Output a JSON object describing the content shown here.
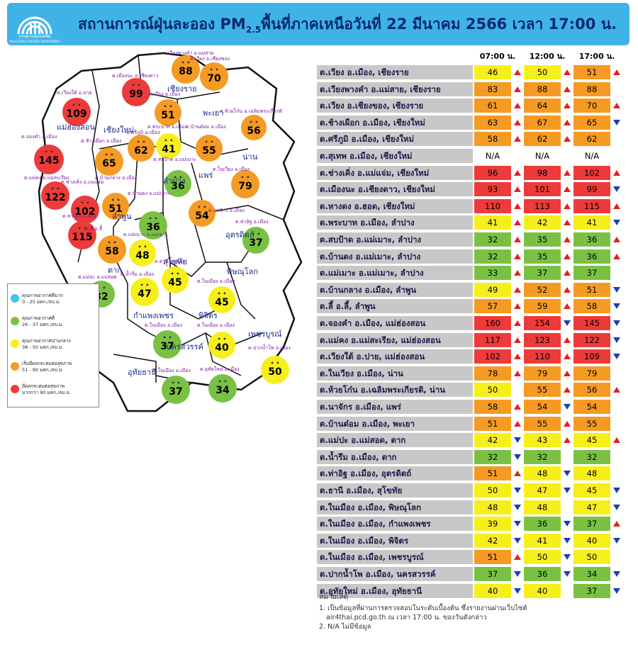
{
  "header": {
    "title_main": "สถานการณ์ฝุ่นละออง PM",
    "title_sub": "2.5",
    "title_rest": "พื้นที่ภาคเหนือวันที่ 22 มีนาคม 2566 เวลา 17:00 น.",
    "logo_text": "กรมควบคุมมลพิษ",
    "logo_subtext": "POLLUTION CONTROL DEPARTMENT",
    "bg_color": "#3fb3e8"
  },
  "legend": {
    "items": [
      {
        "l1": "คุณภาพอากาศดีมาก",
        "l2": "0 - 25 มคก./ลบ.ม.",
        "color": "#3ec6f0"
      },
      {
        "l1": "คุณภาพอากาศดี",
        "l2": "26 - 37 มคก./ลบ.ม.",
        "color": "#7ac143"
      },
      {
        "l1": "คุณภาพอากาศปานกลาง",
        "l2": "38 - 50 มคก./ลบ.ม.",
        "color": "#f7ef1c"
      },
      {
        "l1": "เริ่มมีผลกระทบต่อสุขภาพ",
        "l2": "51 - 90 มคก./ลบ.ม.",
        "color": "#f59a23"
      },
      {
        "l1": "มีผลกระทบต่อสุขภาพ",
        "l2": "มากกว่า 90 มคก./ลบ.ม.",
        "color": "#ed3a3a"
      }
    ]
  },
  "colors": {
    "red": "#ed3a3a",
    "orange": "#f59a23",
    "yellow": "#f7ef1c",
    "green": "#7ac143",
    "grey": "#c8c8c8"
  },
  "times": [
    "07:00 น.",
    "12:00 น.",
    "17:00 น."
  ],
  "stations": [
    {
      "name": "ต.เวียง อ.เมือง, เชียงราย",
      "v": [
        "46",
        "50",
        "51"
      ],
      "t": [
        "up",
        "up",
        "up"
      ]
    },
    {
      "name": "ต.เวียงพางคำ อ.แม่สาย, เชียงราย",
      "v": [
        "83",
        "88",
        "88"
      ],
      "t": [
        "up",
        "up",
        ""
      ]
    },
    {
      "name": "ต.เวียง อ.เชียงของ, เชียงราย",
      "v": [
        "61",
        "64",
        "70"
      ],
      "t": [
        "up",
        "up",
        "up"
      ]
    },
    {
      "name": "ต.ช้างเผือก อ.เมือง, เชียงใหม่",
      "v": [
        "63",
        "67",
        "65"
      ],
      "t": [
        "up",
        "up",
        "down"
      ]
    },
    {
      "name": "ต.ศรีภูมิ อ.เมือง, เชียงใหม่",
      "v": [
        "58",
        "62",
        "62"
      ],
      "t": [
        "up",
        "up",
        ""
      ]
    },
    {
      "name": "ต.สุเทพ อ.เมือง, เชียงใหม่",
      "v": [
        "N/A",
        "N/A",
        "N/A"
      ],
      "t": [
        "",
        "",
        ""
      ]
    },
    {
      "name": "ต.ช่างเคิ่ง อ.แม่แจ่ม, เชียงใหม่",
      "v": [
        "96",
        "98",
        "102"
      ],
      "t": [
        "up",
        "up",
        "up"
      ]
    },
    {
      "name": "ต.เมืองนะ อ.เชียงดาว, เชียงใหม่",
      "v": [
        "93",
        "101",
        "99"
      ],
      "t": [
        "up",
        "up",
        "down"
      ]
    },
    {
      "name": "ต.หางดง อ.ฮอด, เชียงใหม่",
      "v": [
        "110",
        "113",
        "115"
      ],
      "t": [
        "up",
        "up",
        "up"
      ]
    },
    {
      "name": "ต.พระบาท อ.เมือง, ลำปาง",
      "v": [
        "41",
        "42",
        "41"
      ],
      "t": [
        "up",
        "up",
        "down"
      ]
    },
    {
      "name": "ต.สบป้าด อ.แม่เมาะ, ลำปาง",
      "v": [
        "32",
        "35",
        "36"
      ],
      "t": [
        "up",
        "up",
        "up"
      ]
    },
    {
      "name": "ต.บ้านดง อ.แม่เมาะ, ลำปาง",
      "v": [
        "32",
        "35",
        "36"
      ],
      "t": [
        "up",
        "up",
        "up"
      ]
    },
    {
      "name": "ต.แม่เมาะ อ.แม่เมาะ, ลำปาง",
      "v": [
        "33",
        "37",
        "37"
      ],
      "t": [
        "up",
        "up",
        ""
      ]
    },
    {
      "name": "ต.บ้านกลาง อ.เมือง, ลำพูน",
      "v": [
        "49",
        "52",
        "51"
      ],
      "t": [
        "up",
        "up",
        "down"
      ]
    },
    {
      "name": "ต.ลี้ อ.ลี้, ลำพูน",
      "v": [
        "57",
        "59",
        "58"
      ],
      "t": [
        "up",
        "up",
        "down"
      ]
    },
    {
      "name": "ต.จองคำ อ.เมือง, แม่ฮ่องสอน",
      "v": [
        "160",
        "154",
        "145"
      ],
      "t": [
        "up",
        "down",
        "down"
      ]
    },
    {
      "name": "ต.แม่คง อ.แม่สะเรียง, แม่ฮ่องสอน",
      "v": [
        "117",
        "123",
        "122"
      ],
      "t": [
        "up",
        "up",
        "down"
      ]
    },
    {
      "name": "ต.เวียงใต้ อ.ปาย, แม่ฮ่องสอน",
      "v": [
        "102",
        "110",
        "109"
      ],
      "t": [
        "up",
        "up",
        "down"
      ]
    },
    {
      "name": "ต.ในเวียง อ.เมือง, น่าน",
      "v": [
        "78",
        "79",
        "79"
      ],
      "t": [
        "up",
        "up",
        ""
      ]
    },
    {
      "name": "ต.ห้วยโก๋น อ.เฉลิมพระเกียรติ, น่าน",
      "v": [
        "50",
        "55",
        "56"
      ],
      "t": [
        "",
        "up",
        "up"
      ]
    },
    {
      "name": "ต.นาจักร อ.เมือง, แพร่",
      "v": [
        "58",
        "54",
        "54"
      ],
      "t": [
        "up",
        "down",
        ""
      ]
    },
    {
      "name": "ต.บ้านต๋อม อ.เมือง, พะเยา",
      "v": [
        "51",
        "55",
        "55"
      ],
      "t": [
        "up",
        "up",
        ""
      ]
    },
    {
      "name": "ต.แม่ปะ อ.แม่สอด, ตาก",
      "v": [
        "42",
        "43",
        "45"
      ],
      "t": [
        "down",
        "up",
        "up"
      ]
    },
    {
      "name": "ต.น้ำรึม อ.เมือง, ตาก",
      "v": [
        "32",
        "32",
        "32"
      ],
      "t": [
        "down",
        "",
        ""
      ]
    },
    {
      "name": "ต.ท่าอิฐ อ.เมือง, อุตรดิตถ์",
      "v": [
        "51",
        "48",
        "48"
      ],
      "t": [
        "up",
        "down",
        ""
      ]
    },
    {
      "name": "ต.ธานี อ.เมือง, สุโขทัย",
      "v": [
        "50",
        "47",
        "45"
      ],
      "t": [
        "down",
        "down",
        "down"
      ]
    },
    {
      "name": "ต.ในเมือง อ.เมือง, พิษณุโลก",
      "v": [
        "48",
        "48",
        "47"
      ],
      "t": [
        "down",
        "",
        "down"
      ]
    },
    {
      "name": "ต.ในเมือง อ.เมือง, กำแพงเพชร",
      "v": [
        "39",
        "36",
        "37"
      ],
      "t": [
        "down",
        "down",
        "up"
      ]
    },
    {
      "name": "ต.ในเมือง อ.เมือง, พิจิตร",
      "v": [
        "42",
        "41",
        "40"
      ],
      "t": [
        "down",
        "down",
        "down"
      ]
    },
    {
      "name": "ต.ในเมือง อ.เมือง, เพชรบูรณ์",
      "v": [
        "51",
        "50",
        "50"
      ],
      "t": [
        "up",
        "down",
        ""
      ]
    },
    {
      "name": "ต.ปากน้ำโพ อ.เมือง, นครสวรรค์",
      "v": [
        "37",
        "36",
        "34"
      ],
      "t": [
        "down",
        "down",
        "down"
      ]
    },
    {
      "name": "ต.อุทัยใหม่ อ.เมือง, อุทัยธานี",
      "v": [
        "40",
        "40",
        "37"
      ],
      "t": [
        "down",
        "",
        "down"
      ]
    }
  ],
  "notes": {
    "heading": "หมายเหตุ",
    "n1a": "1. เป็นข้อมูลที่ผ่านการตรวจสอบในระดับเบื้องต้น ซึ่งรายงานผ่านเว็บไซต์",
    "n1b": "air4thai.pcd.go.th ณ เวลา 17:00 น. ของวันดังกล่าว",
    "n2": "2. N/A ไม่มีข้อมูล"
  },
  "map": {
    "provinces": [
      "แม่ฮ่องสอน",
      "เชียงใหม่",
      "เชียงราย",
      "พะเยา",
      "น่าน",
      "แพร่",
      "ลำปาง",
      "ลำพูน",
      "อุตรดิตถ์",
      "สุโขทัย",
      "ตาก",
      "พิษณุโลก",
      "กำแพงเพชร",
      "พิจิตร",
      "เพชรบูรณ์",
      "นครสวรรค์",
      "อุทัยธานี"
    ],
    "bubbles": [
      "88",
      "70",
      "99",
      "51",
      "109",
      "56",
      "62",
      "41",
      "55",
      "65",
      "145",
      "36",
      "79",
      "122",
      "102",
      "51",
      "54",
      "36",
      "115",
      "58",
      "48",
      "37",
      "45",
      "32",
      "47",
      "45",
      "37",
      "40",
      "50",
      "37",
      "34"
    ],
    "station_labels": [
      "ต.เวียงพางคำ อ.แม่สาย",
      "ต.เวียง อ.เชียงของ",
      "ต.เมืองนะ อ.เชียงดาว",
      "ต.เวียง อ.เมือง",
      "ต.เวียงใต้ อ.ปาย",
      "ต.ห้วยโก๋น อ.เฉลิมพระเกียรติ",
      "ต.พระบาท อ.เมือง",
      "ต.บ้านต๋อม อ.เมือง",
      "ต.จองคำ อ.เมือง",
      "ต.ช้างเผือก อ.เมือง",
      "ต.ศรีภูมิ อ.เมือง",
      "ต.สบป้าด อ.แม่เมาะ",
      "ต.ในเวียง อ.เมือง",
      "ต.แม่คง อ.แม่สะเรียง",
      "ต.ช่างเคิ่ง อ.แม่แจ่ม",
      "ต.บ้านกลาง อ.เมือง",
      "ต.บ้านดง อ.แม่เมาะ",
      "ต.นาจักร อ.เมือง",
      "ต.หางดง อ.ฮอด",
      "ต.ลี้ อ.ลี้",
      "ต.แม่เมาะ อ.แม่เมาะ",
      "ต.ท่าอิฐ อ.เมือง",
      "ต.ธานี อ.เมือง",
      "ต.แม่ปะ อ.แม่สอด",
      "ต.น้ำรึม อ.เมือง",
      "ต.ในเมือง อ.เมือง",
      "ต.ในเมือง อ.เมือง",
      "ต.ในเมือง อ.เมือง",
      "ต.ปากน้ำโพ อ.เมือง",
      "ต.ในเมือง อ.เมือง",
      "ต.อุทัยใหม่ อ.เมือง"
    ]
  }
}
